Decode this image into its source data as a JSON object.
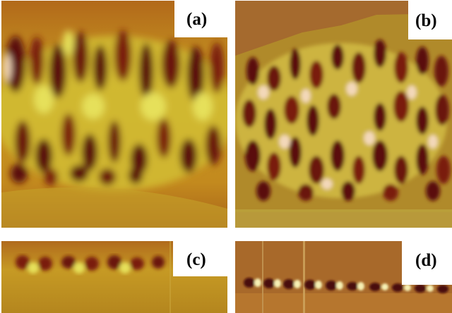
{
  "figure": {
    "panels": [
      {
        "id": "a",
        "label": "(a)"
      },
      {
        "id": "b",
        "label": "(b)"
      },
      {
        "id": "c",
        "label": "(c)"
      },
      {
        "id": "d",
        "label": "(d)"
      }
    ],
    "colors": {
      "background": "#ffffff",
      "dark_domain": "#5a0d0a",
      "mid_domain": "#a8520e",
      "light_domain": "#c9a51a",
      "bright_domain": "#e6e05a",
      "highlight": "#f3d8b9"
    }
  }
}
